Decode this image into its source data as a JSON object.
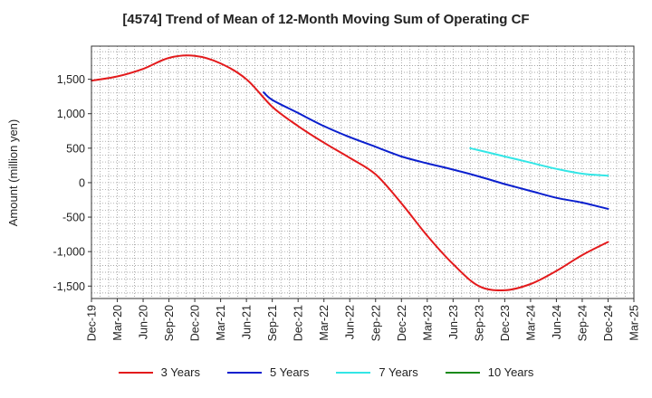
{
  "chart_data": {
    "type": "line",
    "title": "[4574]  Trend of Mean of 12-Month Moving Sum of Operating CF",
    "xlabel": "",
    "ylabel": "Amount (million yen)",
    "ylim": [
      -1680,
      1980
    ],
    "yticks": [
      -1500,
      -1000,
      -500,
      0,
      500,
      1000,
      1500
    ],
    "ytick_labels": [
      "-1,500",
      "-1,000",
      "-500",
      "0",
      "500",
      "1,000",
      "1,500"
    ],
    "x_categories": [
      "Dec-19",
      "Mar-20",
      "Jun-20",
      "Sep-20",
      "Dec-20",
      "Mar-21",
      "Jun-21",
      "Sep-21",
      "Dec-21",
      "Mar-22",
      "Jun-22",
      "Sep-22",
      "Dec-22",
      "Mar-23",
      "Jun-23",
      "Sep-23",
      "Dec-23",
      "Mar-24",
      "Jun-24",
      "Sep-24",
      "Dec-24",
      "Mar-25"
    ],
    "grid": true,
    "legend_position": "bottom",
    "series": [
      {
        "name": "3 Years",
        "color": "#e31a1c",
        "x": [
          "Dec-19",
          "Mar-20",
          "Jun-20",
          "Sep-20",
          "Dec-20",
          "Mar-21",
          "Jun-21",
          "Sep-21",
          "Dec-21",
          "Mar-22",
          "Jun-22",
          "Sep-22",
          "Dec-22",
          "Mar-23",
          "Jun-23",
          "Sep-23",
          "Dec-23",
          "Mar-24",
          "Jun-24",
          "Sep-24",
          "Dec-24"
        ],
        "values": [
          1480,
          1540,
          1650,
          1810,
          1840,
          1730,
          1500,
          1100,
          820,
          580,
          360,
          120,
          -300,
          -770,
          -1180,
          -1500,
          -1560,
          -1470,
          -1280,
          -1050,
          -860
        ]
      },
      {
        "name": "5 Years",
        "color": "#0a1fce",
        "x": [
          "Aug-21",
          "Sep-21",
          "Dec-21",
          "Mar-22",
          "Jun-22",
          "Sep-22",
          "Dec-22",
          "Mar-23",
          "Jun-23",
          "Sep-23",
          "Dec-23",
          "Mar-24",
          "Jun-24",
          "Sep-24",
          "Dec-24"
        ],
        "values": [
          1310,
          1200,
          1010,
          820,
          660,
          520,
          380,
          280,
          190,
          90,
          -20,
          -120,
          -220,
          -290,
          -380
        ]
      },
      {
        "name": "7 Years",
        "color": "#33e6e6",
        "x": [
          "Aug-23",
          "Sep-23",
          "Dec-23",
          "Mar-24",
          "Jun-24",
          "Sep-24",
          "Dec-24"
        ],
        "values": [
          500,
          470,
          380,
          290,
          200,
          130,
          100
        ]
      },
      {
        "name": "10 Years",
        "color": "#1a8a1a",
        "x": [],
        "values": []
      }
    ]
  }
}
